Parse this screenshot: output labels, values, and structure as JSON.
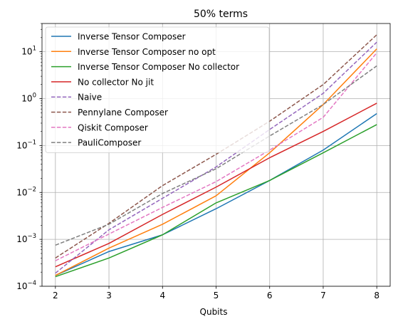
{
  "chart_data": {
    "type": "line",
    "title": "50% terms",
    "xlabel": "Qubits",
    "ylabel": "",
    "x": [
      2,
      3,
      4,
      5,
      6,
      7,
      8
    ],
    "xlim": [
      1.75,
      8.25
    ],
    "ylim": [
      0.0001,
      40
    ],
    "yscale": "log",
    "x_ticks": [
      "2",
      "3",
      "4",
      "5",
      "6",
      "7",
      "8"
    ],
    "y_ticks": [
      {
        "value": 0.0001,
        "base": "10",
        "exp": "−4"
      },
      {
        "value": 0.001,
        "base": "10",
        "exp": "−3"
      },
      {
        "value": 0.01,
        "base": "10",
        "exp": "−2"
      },
      {
        "value": 0.1,
        "base": "10",
        "exp": "−1"
      },
      {
        "value": 1,
        "base": "10",
        "exp": "0"
      },
      {
        "value": 10,
        "base": "10",
        "exp": "1"
      }
    ],
    "grid": true,
    "legend_position": "top-left",
    "series": [
      {
        "name": "Inverse Tensor Composer",
        "color": "#1f77b4",
        "dash": "solid",
        "values": [
          0.00017,
          0.00055,
          0.00125,
          0.0045,
          0.018,
          0.08,
          0.48
        ]
      },
      {
        "name": "Inverse Tensor Composer no opt",
        "color": "#ff7f0e",
        "dash": "solid",
        "values": [
          0.00017,
          0.00065,
          0.0021,
          0.0085,
          0.07,
          0.75,
          11.5
        ]
      },
      {
        "name": "Inverse Tensor Composer No collector",
        "color": "#2ca02c",
        "dash": "solid",
        "values": [
          0.00016,
          0.0004,
          0.00125,
          0.006,
          0.018,
          0.07,
          0.28
        ]
      },
      {
        "name": "No collector No jit",
        "color": "#d62728",
        "dash": "solid",
        "values": [
          0.00026,
          0.00082,
          0.0034,
          0.013,
          0.055,
          0.2,
          0.8
        ]
      },
      {
        "name": "Naive",
        "color": "#9467bd",
        "dash": "dashed",
        "values": [
          0.00019,
          0.0016,
          0.0075,
          0.035,
          0.22,
          1.3,
          16
        ]
      },
      {
        "name": "Pennylane Composer",
        "color": "#8c564b",
        "dash": "dashed",
        "values": [
          0.0004,
          0.0022,
          0.014,
          0.065,
          0.33,
          2.0,
          23
        ]
      },
      {
        "name": "Qiskit Composer",
        "color": "#e377c2",
        "dash": "dashed",
        "values": [
          0.00035,
          0.0013,
          0.0048,
          0.017,
          0.08,
          0.4,
          9.5
        ]
      },
      {
        "name": "PauliComposer",
        "color": "#7f7f7f",
        "dash": "dashed",
        "values": [
          0.00075,
          0.0021,
          0.0095,
          0.032,
          0.16,
          0.75,
          5
        ]
      }
    ]
  }
}
